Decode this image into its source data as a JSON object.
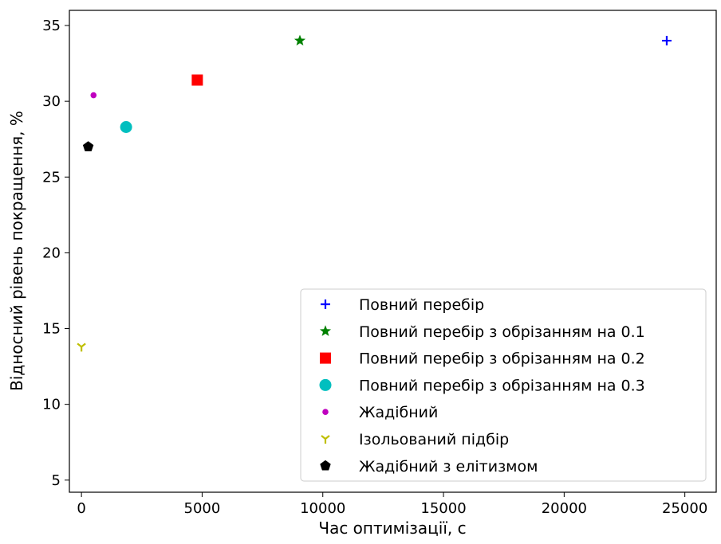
{
  "chart_data": {
    "type": "scatter",
    "title": "",
    "xlabel": "Час оптимізації, с",
    "ylabel": "Відносний рівень покращення, %",
    "xlim": [
      -500,
      26300
    ],
    "ylim": [
      4.2,
      36
    ],
    "xticks": [
      0,
      5000,
      10000,
      15000,
      20000,
      25000
    ],
    "yticks": [
      5,
      10,
      15,
      20,
      25,
      30,
      35
    ],
    "grid": false,
    "legend_position": "lower-right",
    "series": [
      {
        "name": "Повний перебір",
        "marker": "plus",
        "color": "#0000ff",
        "points": [
          {
            "x": 24250,
            "y": 34.0
          }
        ]
      },
      {
        "name": "Повний перебір з обрізанням на 0.1",
        "marker": "star",
        "color": "#008000",
        "points": [
          {
            "x": 9050,
            "y": 34.0
          }
        ]
      },
      {
        "name": "Повний перебір з обрізанням на 0.2",
        "marker": "square",
        "color": "#ff0000",
        "points": [
          {
            "x": 4800,
            "y": 31.4
          }
        ]
      },
      {
        "name": "Повний перебір з обрізанням на 0.3",
        "marker": "circle",
        "color": "#00bfbf",
        "points": [
          {
            "x": 1850,
            "y": 28.3
          }
        ]
      },
      {
        "name": "Жадібний",
        "marker": "dot",
        "color": "#bf00bf",
        "points": [
          {
            "x": 500,
            "y": 30.4
          }
        ]
      },
      {
        "name": "Ізольований підбір",
        "marker": "tri",
        "color": "#bfbf00",
        "points": [
          {
            "x": 0,
            "y": 13.8
          }
        ]
      },
      {
        "name": "Жадібний з елітизмом",
        "marker": "pentagon",
        "color": "#000000",
        "points": [
          {
            "x": 280,
            "y": 27.0
          }
        ]
      }
    ]
  }
}
